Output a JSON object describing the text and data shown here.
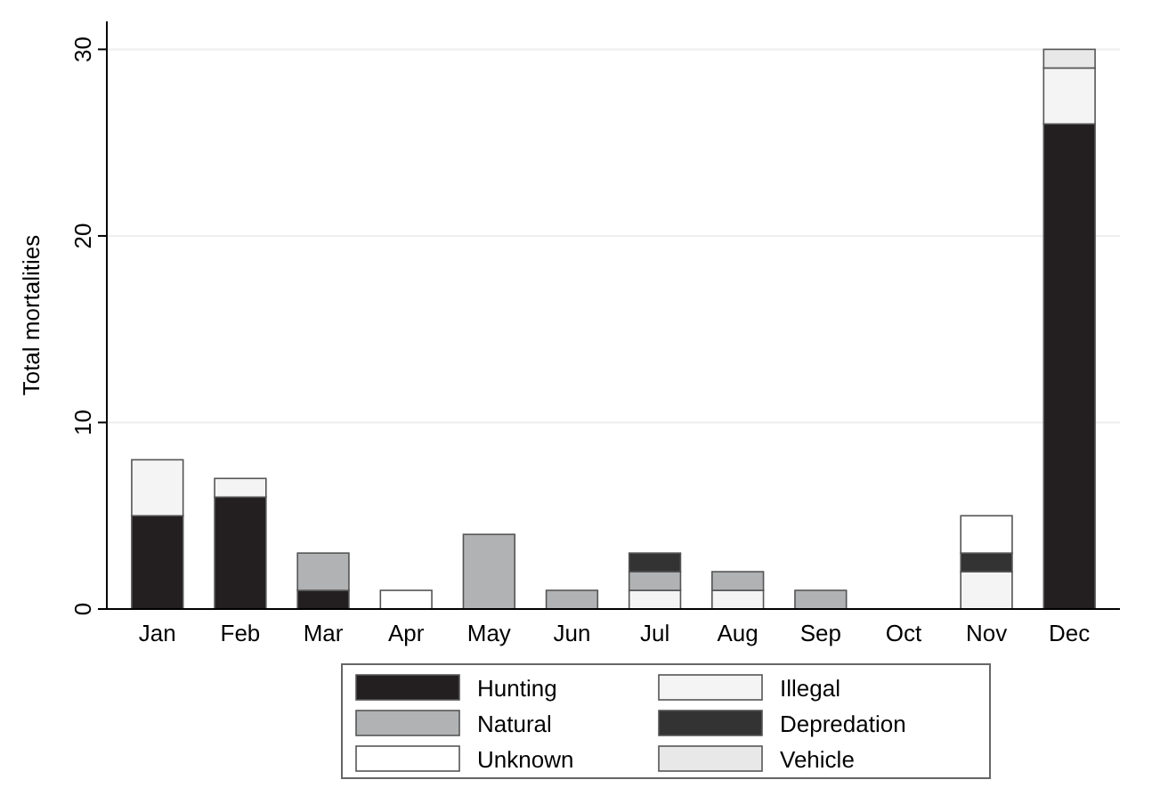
{
  "chart_data": {
    "type": "bar",
    "stacked": true,
    "ylabel": "Total mortalities",
    "categories": [
      "Jan",
      "Feb",
      "Mar",
      "Apr",
      "May",
      "Jun",
      "Jul",
      "Aug",
      "Sep",
      "Oct",
      "Nov",
      "Dec"
    ],
    "series": [
      {
        "name": "Hunting",
        "color": "#231f20",
        "values": [
          5,
          6,
          1,
          0,
          0,
          0,
          0,
          0,
          0,
          0,
          0,
          26
        ]
      },
      {
        "name": "Illegal",
        "color": "#f4f4f4",
        "values": [
          3,
          1,
          0,
          0,
          0,
          0,
          1,
          1,
          0,
          0,
          2,
          3
        ]
      },
      {
        "name": "Natural",
        "color": "#b1b2b4",
        "values": [
          0,
          0,
          2,
          0,
          4,
          1,
          1,
          1,
          1,
          0,
          0,
          0
        ]
      },
      {
        "name": "Depredation",
        "color": "#333333",
        "values": [
          0,
          0,
          0,
          0,
          0,
          0,
          1,
          0,
          0,
          0,
          1,
          0
        ]
      },
      {
        "name": "Unknown",
        "color": "#ffffff",
        "values": [
          0,
          0,
          0,
          1,
          0,
          0,
          0,
          0,
          0,
          0,
          2,
          0
        ]
      },
      {
        "name": "Vehicle",
        "color": "#e8e8e8",
        "values": [
          0,
          0,
          0,
          0,
          0,
          0,
          0,
          0,
          0,
          0,
          0,
          1
        ]
      }
    ],
    "ylim": [
      0,
      31.5
    ],
    "yticks": [
      0,
      10,
      20,
      30
    ],
    "grid": "y",
    "legend": "bottom"
  }
}
